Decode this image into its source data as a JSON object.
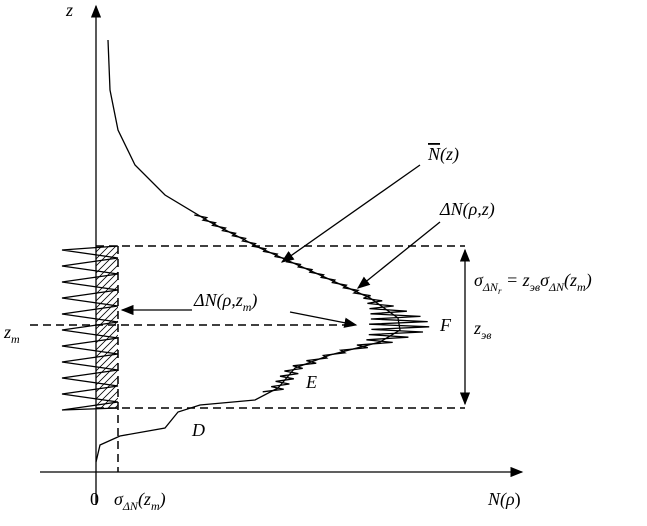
{
  "labels": {
    "z_axis": "z",
    "x_axis": [
      "N(",
      "ρ",
      ")"
    ],
    "origin": "0",
    "sigma_bottom": [
      "σ",
      "ΔN",
      "(z",
      "m",
      ")"
    ],
    "mean_curve": [
      "N",
      "(z)"
    ],
    "fluct_z": [
      "ΔN(",
      "ρ",
      ",z)"
    ],
    "fluct_zm": [
      "ΔN(",
      "ρ",
      ",z",
      "m",
      ")"
    ],
    "sigma_relation": [
      "σ",
      "ΔN",
      "r",
      " = z",
      "эв",
      "σ",
      "ΔN",
      "(z",
      "m",
      ")"
    ],
    "z_m": [
      "z",
      "m"
    ],
    "point_F": "F",
    "point_E": "E",
    "point_D": "D",
    "z_ev": [
      "z",
      "эв"
    ]
  }
}
